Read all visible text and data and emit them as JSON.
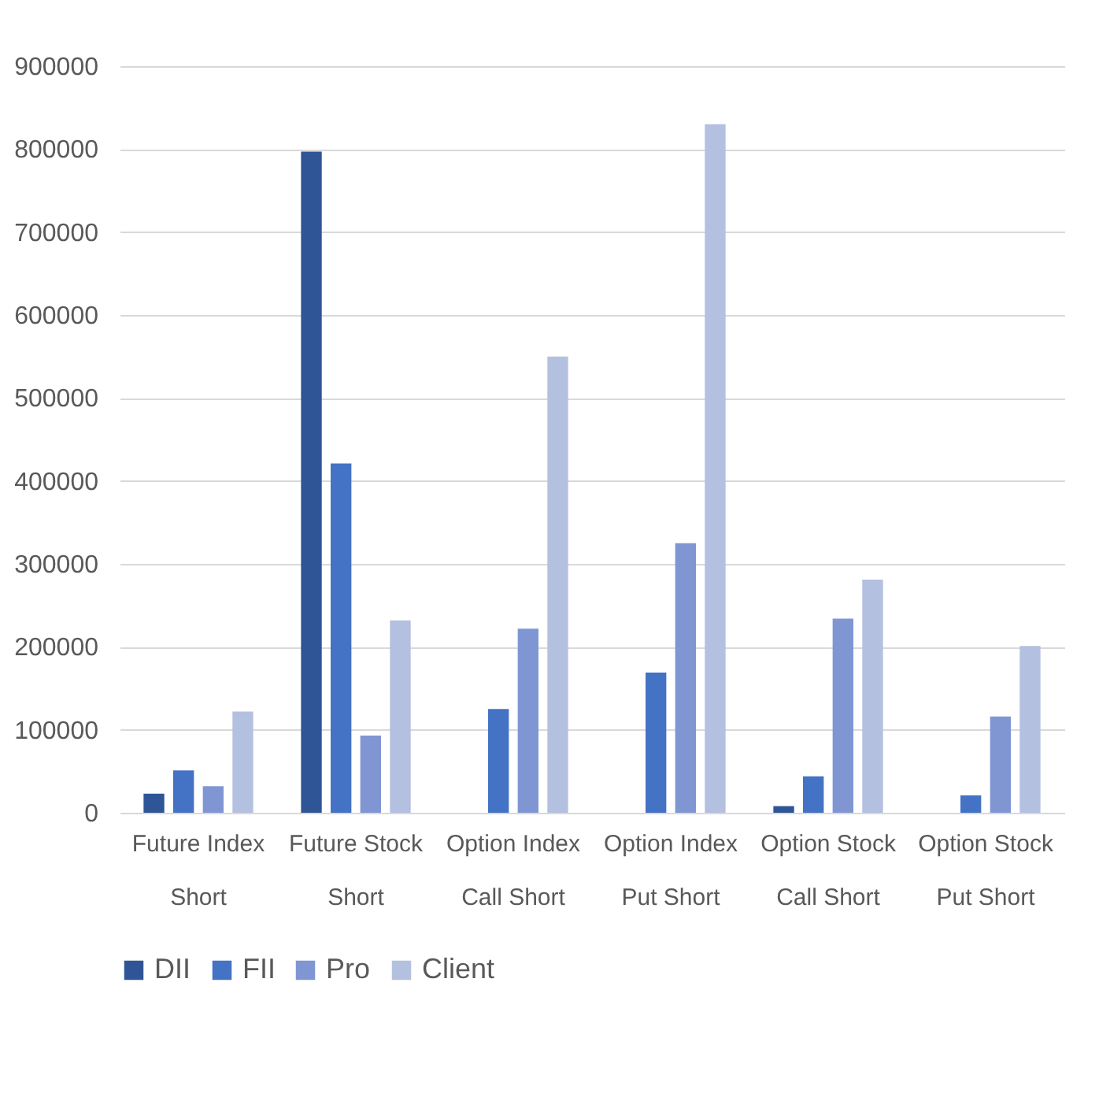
{
  "chart_data": {
    "type": "bar",
    "categories": [
      "Future Index Short",
      "Future Stock Short",
      "Option Index Call Short",
      "Option Index Put Short",
      "Option Stock Call Short",
      "Option Stock Put Short"
    ],
    "series": [
      {
        "name": "DII",
        "color": "#2f5597",
        "values": [
          23000,
          797000,
          0,
          0,
          8000,
          0
        ]
      },
      {
        "name": "FII",
        "color": "#4472c4",
        "values": [
          51000,
          421000,
          125000,
          169000,
          44000,
          21000
        ]
      },
      {
        "name": "Pro",
        "color": "#7f96d3",
        "values": [
          32000,
          93000,
          222000,
          325000,
          234000,
          116000
        ]
      },
      {
        "name": "Client",
        "color": "#b4c0e0",
        "values": [
          122000,
          232000,
          550000,
          830000,
          281000,
          201000
        ]
      }
    ],
    "ylim": [
      0,
      900000
    ],
    "yticks": [
      0,
      100000,
      200000,
      300000,
      400000,
      500000,
      600000,
      700000,
      800000,
      900000
    ],
    "grid": "y",
    "legend": "bottom"
  }
}
